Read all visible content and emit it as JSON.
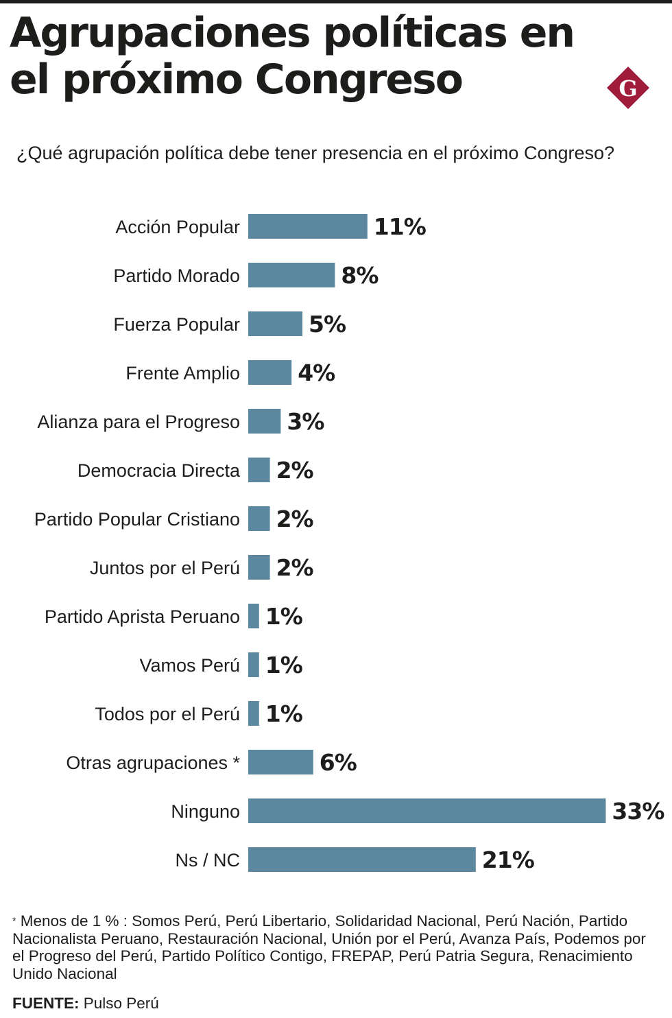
{
  "title": "Agrupaciones políticas en el próximo Congreso",
  "logo_letter": "G",
  "subtitle": "¿Qué agrupación política debe tener presencia en el próximo Congreso?",
  "colors": {
    "bar": "#5b879f",
    "logo": "#a01c3a",
    "text": "#1d1d1b"
  },
  "chart_data": {
    "type": "bar",
    "orientation": "horizontal",
    "categories": [
      "Acción Popular",
      "Partido Morado",
      "Fuerza Popular",
      "Frente Amplio",
      "Alianza para el Progreso",
      "Democracia Directa",
      "Partido Popular Cristiano",
      "Juntos por el Perú",
      "Partido Aprista Peruano",
      "Vamos Perú",
      "Todos por el Perú",
      "Otras agrupaciones *",
      "Ninguno",
      "Ns / NC"
    ],
    "values": [
      11,
      8,
      5,
      4,
      3,
      2,
      2,
      2,
      1,
      1,
      1,
      6,
      33,
      21
    ],
    "value_labels": [
      "11%",
      "8%",
      "5%",
      "4%",
      "3%",
      "2%",
      "2%",
      "2%",
      "1%",
      "1%",
      "1%",
      "6%",
      "33%",
      "21%"
    ],
    "unit": "%",
    "grid": false,
    "legend": "none"
  },
  "footnote": {
    "marker": "*",
    "text": " Menos de 1 % : Somos Perú, Perú Libertario, Solidaridad Nacional, Perú Nación, Partido Nacionalista Peruano, Restauración Nacional, Unión por el Perú, Avanza País, Podemos por el Progreso del Perú, Partido Político Contigo, FREPAP, Perú Patria Segura, Renacimiento Unido Nacional"
  },
  "source": {
    "label": "FUENTE:",
    "text": " Pulso Perú"
  }
}
